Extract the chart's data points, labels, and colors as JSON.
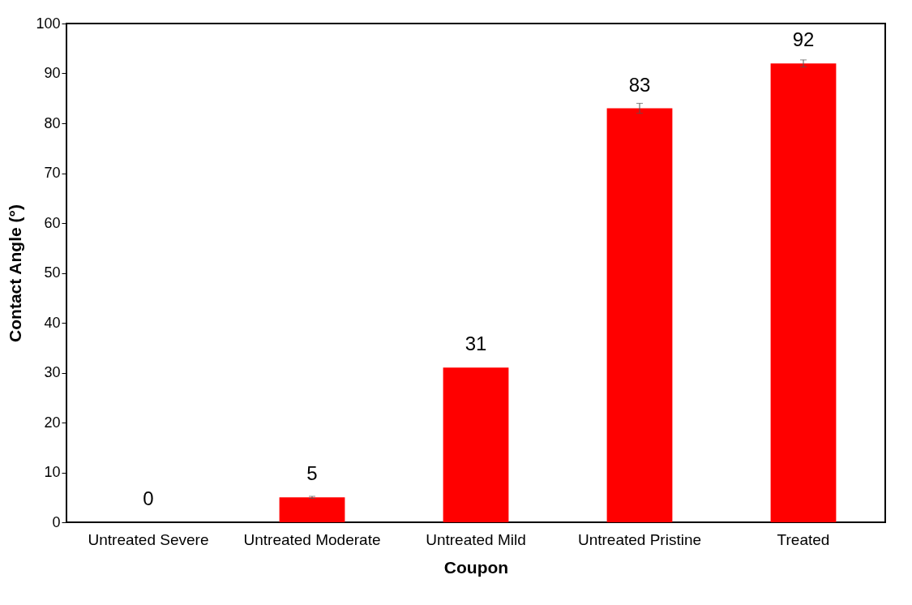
{
  "chart_data": {
    "type": "bar",
    "xlabel": "Coupon",
    "ylabel": "Contact Angle (°)",
    "categories": [
      "Untreated Severe",
      "Untreated Moderate",
      "Untreated Mild",
      "Untreated Pristine",
      "Treated"
    ],
    "values": [
      0,
      5,
      31,
      83,
      92
    ],
    "errors": [
      null,
      0.2,
      null,
      1,
      0.7
    ],
    "color": "#ff0000",
    "ylim": [
      0,
      100
    ],
    "yticks": [
      0,
      10,
      20,
      30,
      40,
      50,
      60,
      70,
      80,
      90,
      100
    ],
    "data_labels": true
  }
}
